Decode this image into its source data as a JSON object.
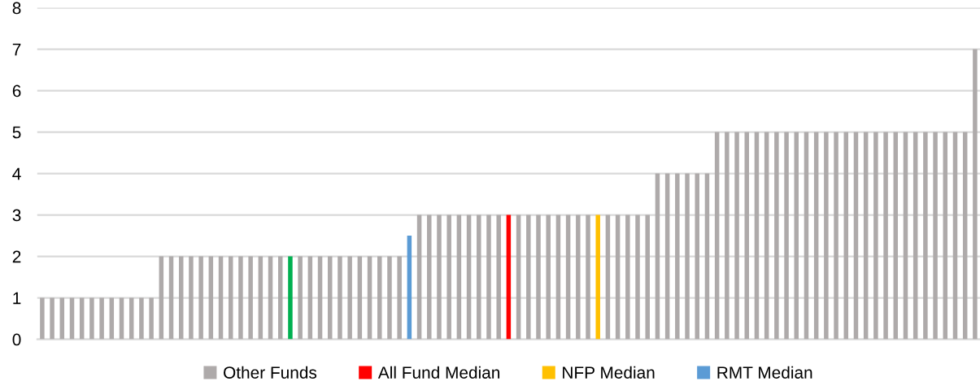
{
  "chart_data": {
    "type": "bar",
    "categories": [
      null,
      null,
      null,
      null,
      null,
      null,
      null,
      null,
      null,
      null,
      null,
      null,
      null,
      null,
      null,
      null,
      null,
      null,
      null,
      null,
      null,
      null,
      null,
      null,
      null,
      null,
      null,
      null,
      null,
      null,
      null,
      null,
      null,
      null,
      null,
      null,
      null,
      null,
      null,
      null,
      null,
      null,
      null,
      null,
      null,
      null,
      null,
      null,
      null,
      null,
      null,
      null,
      null,
      null,
      null,
      null,
      null,
      null,
      null,
      null,
      null,
      null,
      null,
      null,
      null,
      null,
      null,
      null,
      null,
      null,
      null,
      null,
      null,
      null,
      null,
      null,
      null,
      null,
      null,
      null,
      null,
      null,
      null,
      null,
      null,
      null,
      null,
      null,
      null,
      null,
      null,
      null,
      null,
      null,
      null
    ],
    "series": [
      {
        "name": "Other Funds",
        "color": "#aeaaaa",
        "values": [
          1,
          1,
          1,
          1,
          1,
          1,
          1,
          1,
          1,
          1,
          1,
          1,
          2,
          2,
          2,
          2,
          2,
          2,
          2,
          2,
          2,
          2,
          2,
          2,
          2,
          null,
          2,
          2,
          2,
          2,
          2,
          2,
          2,
          2,
          2,
          2,
          2,
          null,
          3,
          3,
          3,
          3,
          3,
          3,
          3,
          3,
          3,
          null,
          3,
          3,
          3,
          3,
          3,
          3,
          3,
          3,
          null,
          3,
          3,
          3,
          3,
          3,
          4,
          4,
          4,
          4,
          4,
          4,
          5,
          5,
          5,
          5,
          5,
          5,
          5,
          5,
          5,
          5,
          5,
          5,
          5,
          5,
          5,
          5,
          5,
          5,
          5,
          5,
          5,
          5,
          5,
          5,
          5,
          5,
          7
        ]
      },
      {
        "color": "#00b050",
        "values": [
          null,
          null,
          null,
          null,
          null,
          null,
          null,
          null,
          null,
          null,
          null,
          null,
          null,
          null,
          null,
          null,
          null,
          null,
          null,
          null,
          null,
          null,
          null,
          null,
          null,
          2,
          null,
          null,
          null,
          null,
          null,
          null,
          null,
          null,
          null,
          null,
          null,
          null,
          null,
          null,
          null,
          null,
          null,
          null,
          null,
          null,
          null,
          null,
          null,
          null,
          null,
          null,
          null,
          null,
          null,
          null,
          null,
          null,
          null,
          null,
          null,
          null,
          null,
          null,
          null,
          null,
          null,
          null,
          null,
          null,
          null,
          null,
          null,
          null,
          null,
          null,
          null,
          null,
          null,
          null,
          null,
          null,
          null,
          null,
          null,
          null,
          null,
          null,
          null,
          null,
          null,
          null,
          null,
          null,
          null
        ]
      },
      {
        "name": "All Fund Median",
        "color": "#ff0000",
        "values": [
          null,
          null,
          null,
          null,
          null,
          null,
          null,
          null,
          null,
          null,
          null,
          null,
          null,
          null,
          null,
          null,
          null,
          null,
          null,
          null,
          null,
          null,
          null,
          null,
          null,
          null,
          null,
          null,
          null,
          null,
          null,
          null,
          null,
          null,
          null,
          null,
          null,
          null,
          null,
          null,
          null,
          null,
          null,
          null,
          null,
          null,
          null,
          3,
          null,
          null,
          null,
          null,
          null,
          null,
          null,
          null,
          null,
          null,
          null,
          null,
          null,
          null,
          null,
          null,
          null,
          null,
          null,
          null,
          null,
          null,
          null,
          null,
          null,
          null,
          null,
          null,
          null,
          null,
          null,
          null,
          null,
          null,
          null,
          null,
          null,
          null,
          null,
          null,
          null,
          null,
          null,
          null,
          null,
          null,
          null
        ]
      },
      {
        "name": "NFP Median",
        "color": "#ffc000",
        "values": [
          null,
          null,
          null,
          null,
          null,
          null,
          null,
          null,
          null,
          null,
          null,
          null,
          null,
          null,
          null,
          null,
          null,
          null,
          null,
          null,
          null,
          null,
          null,
          null,
          null,
          null,
          null,
          null,
          null,
          null,
          null,
          null,
          null,
          null,
          null,
          null,
          null,
          null,
          null,
          null,
          null,
          null,
          null,
          null,
          null,
          null,
          null,
          null,
          null,
          null,
          null,
          null,
          null,
          null,
          null,
          null,
          3,
          null,
          null,
          null,
          null,
          null,
          null,
          null,
          null,
          null,
          null,
          null,
          null,
          null,
          null,
          null,
          null,
          null,
          null,
          null,
          null,
          null,
          null,
          null,
          null,
          null,
          null,
          null,
          null,
          null,
          null,
          null,
          null,
          null,
          null,
          null,
          null,
          null,
          null
        ]
      },
      {
        "name": "RMT Median",
        "color": "#5b9bd5",
        "values": [
          null,
          null,
          null,
          null,
          null,
          null,
          null,
          null,
          null,
          null,
          null,
          null,
          null,
          null,
          null,
          null,
          null,
          null,
          null,
          null,
          null,
          null,
          null,
          null,
          null,
          null,
          null,
          null,
          null,
          null,
          null,
          null,
          null,
          null,
          null,
          null,
          null,
          2.5,
          null,
          null,
          null,
          null,
          null,
          null,
          null,
          null,
          null,
          null,
          null,
          null,
          null,
          null,
          null,
          null,
          null,
          null,
          null,
          null,
          null,
          null,
          null,
          null,
          null,
          null,
          null,
          null,
          null,
          null,
          null,
          null,
          null,
          null,
          null,
          null,
          null,
          null,
          null,
          null,
          null,
          null,
          null,
          null,
          null,
          null,
          null,
          null,
          null,
          null,
          null,
          null,
          null,
          null,
          null,
          null,
          null
        ]
      }
    ],
    "ylim": [
      0,
      8
    ],
    "yticks": [
      0,
      1,
      2,
      3,
      4,
      5,
      6,
      7,
      8
    ],
    "grid": "y",
    "legend": "bottom"
  }
}
